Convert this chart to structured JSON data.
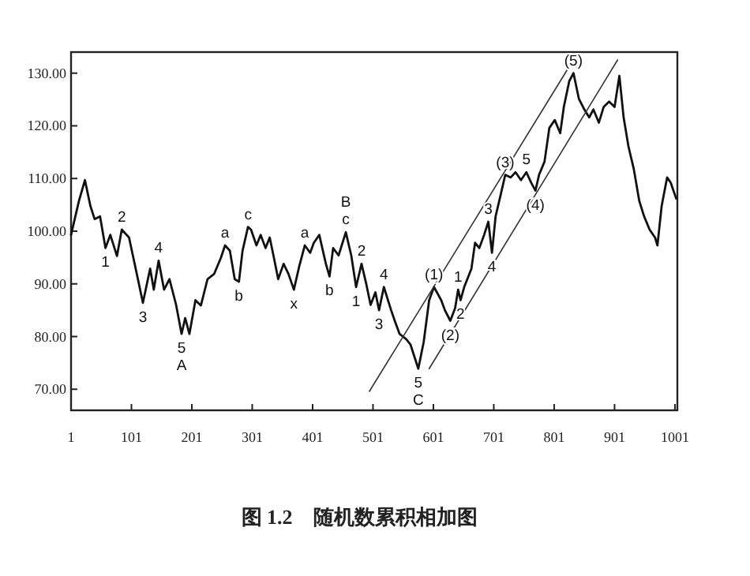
{
  "chart_data": {
    "type": "line",
    "title": "图 1.2　随机数累积相加图",
    "xlim": [
      1,
      1005
    ],
    "ylim": [
      66,
      134
    ],
    "xticks": [
      1,
      101,
      201,
      301,
      401,
      501,
      601,
      701,
      801,
      901,
      1001
    ],
    "yticks": [
      {
        "value": 70,
        "label": "70.00"
      },
      {
        "value": 80,
        "label": "80.00"
      },
      {
        "value": 90,
        "label": "90.00"
      },
      {
        "value": 100,
        "label": "100.00"
      },
      {
        "value": 110,
        "label": "110.00"
      },
      {
        "value": 120,
        "label": "120.00"
      },
      {
        "value": 130,
        "label": "130.00"
      }
    ],
    "series": [
      {
        "color": "#111111",
        "x": [
          1,
          14,
          24,
          33,
          40,
          49,
          58,
          66,
          77,
          85,
          97,
          108,
          120,
          132,
          138,
          146,
          155,
          164,
          175,
          184,
          190,
          197,
          207,
          216,
          227,
          238,
          249,
          256,
          264,
          272,
          279,
          285,
          294,
          299,
          308,
          315,
          323,
          330,
          337,
          344,
          353,
          361,
          370,
          379,
          388,
          397,
          403,
          412,
          423,
          429,
          435,
          444,
          456,
          465,
          473,
          482,
          490,
          497,
          505,
          511,
          519,
          531,
          537,
          545,
          556,
          563,
          576,
          585,
          594,
          602,
          614,
          620,
          629,
          637,
          642,
          646,
          652,
          664,
          670,
          677,
          685,
          692,
          698,
          704,
          713,
          720,
          729,
          737,
          746,
          755,
          763,
          770,
          776,
          785,
          793,
          802,
          811,
          817,
          826,
          833,
          842,
          851,
          859,
          866,
          875,
          883,
          892,
          901,
          909,
          916,
          924,
          933,
          942,
          950,
          959,
          968,
          972,
          979,
          988,
          994,
          1003
        ],
        "values": [
          99.3,
          105.7,
          109.7,
          104.8,
          102.3,
          102.8,
          96.8,
          99.3,
          95.3,
          100.3,
          98.8,
          92.9,
          86.4,
          92.9,
          88.9,
          94.4,
          88.9,
          90.9,
          86,
          80.5,
          83.5,
          80.5,
          86.9,
          85.9,
          90.9,
          91.9,
          94.9,
          97.3,
          96.3,
          90.9,
          90.4,
          96.3,
          100.8,
          100.3,
          97.3,
          99.3,
          96.8,
          98.8,
          94.9,
          90.9,
          93.8,
          91.9,
          88.9,
          93.4,
          97.3,
          95.9,
          97.8,
          99.3,
          93.8,
          91.4,
          96.8,
          95.4,
          99.8,
          95.4,
          89.4,
          93.8,
          89.9,
          86,
          88.4,
          85,
          89.4,
          85,
          83,
          80.5,
          79.5,
          78.5,
          73.9,
          79,
          86.9,
          89.4,
          86.9,
          85,
          83,
          85.4,
          88.9,
          86.9,
          89.4,
          92.9,
          97.8,
          96.8,
          99.3,
          101.8,
          95.9,
          102.8,
          107.2,
          110.7,
          110.2,
          111.2,
          109.7,
          111.2,
          109.2,
          107.7,
          110.7,
          113.2,
          119.6,
          121.1,
          118.6,
          123.6,
          128.5,
          130,
          125.1,
          123.1,
          121.6,
          123.1,
          120.6,
          123.6,
          124.6,
          123.6,
          129.5,
          121.6,
          116.1,
          111.7,
          105.7,
          102.8,
          100.3,
          98.8,
          97.3,
          104.8,
          110.2,
          109.2,
          106.2
        ]
      },
      {
        "type": "line",
        "color": "#333333",
        "x": [
          495,
          823
        ],
        "values": [
          69.6,
          130.7
        ]
      },
      {
        "type": "line",
        "color": "#333333",
        "x": [
          594,
          906
        ],
        "values": [
          73.9,
          132.5
        ]
      }
    ],
    "annotations": [
      {
        "text": "1",
        "x": 58,
        "y": 96.8
      },
      {
        "text": "2",
        "x": 85,
        "y": 100.3
      },
      {
        "text": "3",
        "x": 120,
        "y": 86.4
      },
      {
        "text": "4",
        "x": 146,
        "y": 94.4
      },
      {
        "text": "5",
        "x": 184,
        "y": 80.5
      },
      {
        "text": "A",
        "x": 184,
        "y": 80.5
      },
      {
        "text": "a",
        "x": 256,
        "y": 97.3
      },
      {
        "text": "b",
        "x": 279,
        "y": 90.4
      },
      {
        "text": "c",
        "x": 294,
        "y": 100.8
      },
      {
        "text": "x",
        "x": 370,
        "y": 88.9
      },
      {
        "text": "a",
        "x": 388,
        "y": 97.3
      },
      {
        "text": "b",
        "x": 429,
        "y": 91.4
      },
      {
        "text": "c",
        "x": 456,
        "y": 99.8
      },
      {
        "text": "B",
        "x": 456,
        "y": 99.8
      },
      {
        "text": "1",
        "x": 473,
        "y": 89.4
      },
      {
        "text": "2",
        "x": 482,
        "y": 93.8
      },
      {
        "text": "3",
        "x": 511,
        "y": 85
      },
      {
        "text": "4",
        "x": 519,
        "y": 89.4
      },
      {
        "text": "5",
        "x": 576,
        "y": 73.9
      },
      {
        "text": "C",
        "x": 576,
        "y": 73.9
      },
      {
        "text": "(1)",
        "x": 602,
        "y": 89.4
      },
      {
        "text": "(2)",
        "x": 629,
        "y": 83
      },
      {
        "text": "1",
        "x": 642,
        "y": 88.9
      },
      {
        "text": "2",
        "x": 646,
        "y": 86.9
      },
      {
        "text": "3",
        "x": 692,
        "y": 101.8
      },
      {
        "text": "4",
        "x": 698,
        "y": 95.9
      },
      {
        "text": "(3)",
        "x": 720,
        "y": 110.7
      },
      {
        "text": "5",
        "x": 755,
        "y": 111.2
      },
      {
        "text": "(4)",
        "x": 770,
        "y": 107.7
      },
      {
        "text": "(5)",
        "x": 833,
        "y": 130
      }
    ]
  }
}
